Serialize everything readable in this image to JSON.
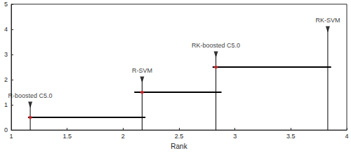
{
  "chart_data": {
    "type": "rank",
    "x_label": "Rank",
    "xlim": [
      1,
      4
    ],
    "xticks": [
      1,
      1.5,
      2,
      2.5,
      3,
      3.5,
      4
    ],
    "ylim": [
      0,
      5
    ],
    "yticks": [
      0,
      1,
      2,
      3,
      4,
      5
    ],
    "grid": false,
    "color": "#000000",
    "series": [
      {
        "name": "R-boosted C5.0",
        "x": 1.17,
        "arrow_height": 1,
        "bar": {
          "y": 0.5,
          "start": 1.15,
          "end": 2.2
        },
        "color": "#e0282e",
        "marker": "circle"
      },
      {
        "name": "R-SVM",
        "x": 2.17,
        "arrow_height": 2,
        "bar": {
          "y": 1.5,
          "start": 2.1,
          "end": 2.88
        },
        "color": "#e0282e",
        "marker": "circle"
      },
      {
        "name": "RK-boosted C5.0",
        "x": 2.83,
        "arrow_height": 3,
        "bar": {
          "y": 2.5,
          "start": 2.8,
          "end": 3.86
        },
        "color": "#e0282e",
        "marker": "circle"
      },
      {
        "name": "RK-SVM",
        "x": 3.83,
        "arrow_height": 4,
        "bar": null,
        "color": "#e0282e",
        "marker": "circle"
      }
    ]
  }
}
